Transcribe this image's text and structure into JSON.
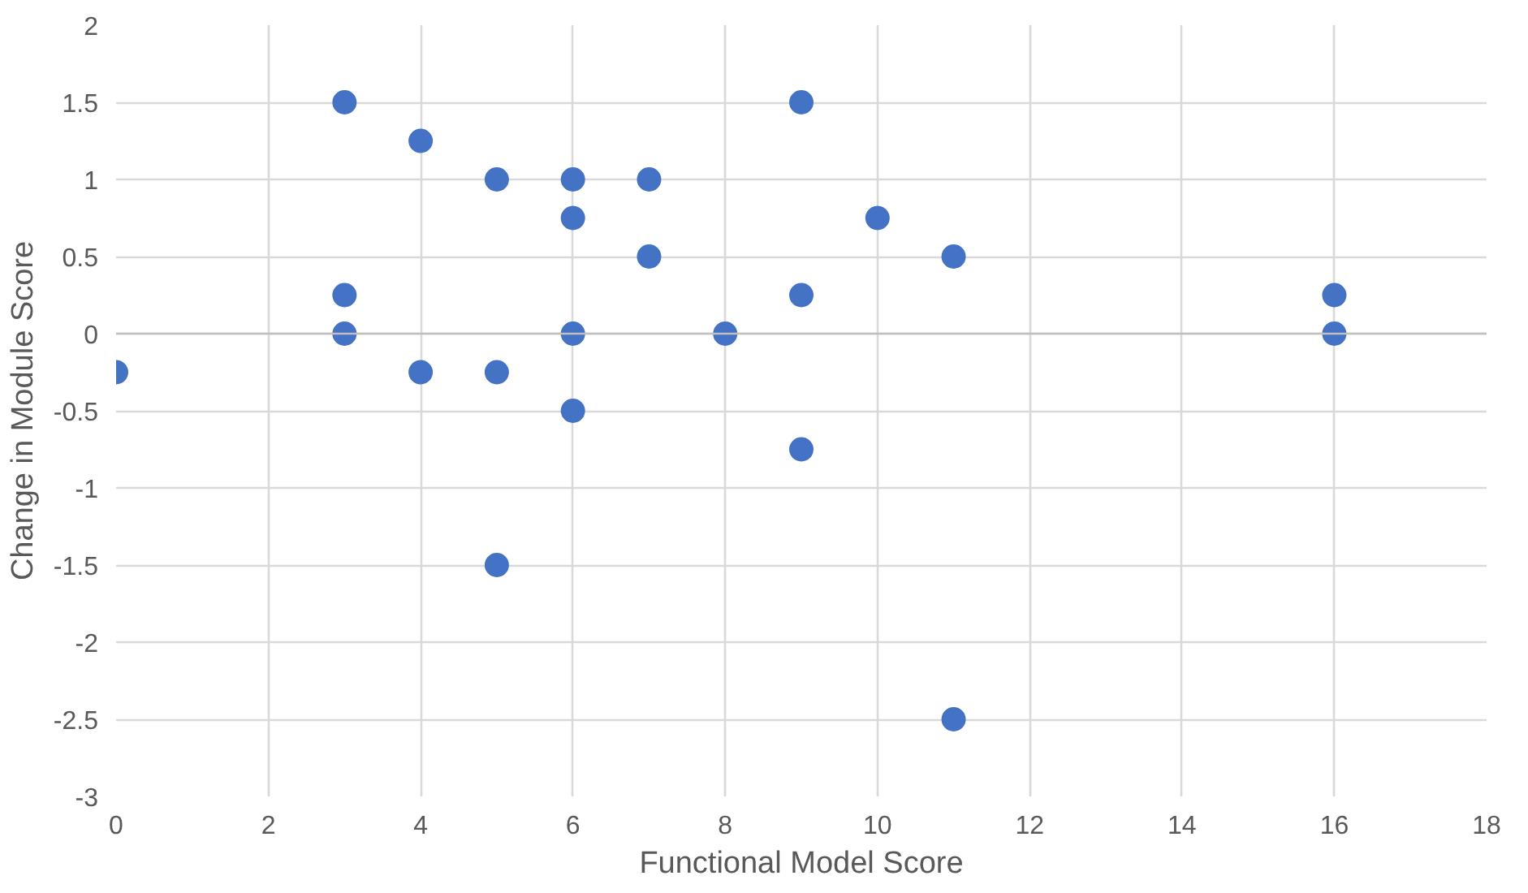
{
  "chart_data": {
    "type": "scatter",
    "xlabel": "Functional Model Score",
    "ylabel": "Change in Module Score",
    "x": [
      0,
      3,
      3,
      3,
      4,
      4,
      5,
      5,
      5,
      6,
      6,
      6,
      6,
      7,
      7,
      8,
      9,
      9,
      9,
      10,
      11,
      11,
      16,
      16
    ],
    "series": [
      {
        "color": "#4472c4",
        "values": [
          -0.25,
          1.5,
          0.25,
          0,
          1.25,
          -0.25,
          1,
          -0.25,
          -1.5,
          1,
          0.75,
          0,
          -0.5,
          1,
          0.5,
          0,
          1.5,
          0.25,
          -0.75,
          0.75,
          0.5,
          -2.5,
          0.25,
          0
        ]
      }
    ],
    "xlim": [
      0,
      18
    ],
    "xticks": [
      0,
      2,
      4,
      6,
      8,
      10,
      12,
      14,
      16,
      18
    ],
    "ylim": [
      -3,
      2
    ],
    "yticks": [
      -3,
      -2.5,
      -2,
      -1.5,
      -1,
      -0.5,
      0,
      0.5,
      1,
      1.5,
      2
    ],
    "grid": true,
    "marker": "circle"
  }
}
